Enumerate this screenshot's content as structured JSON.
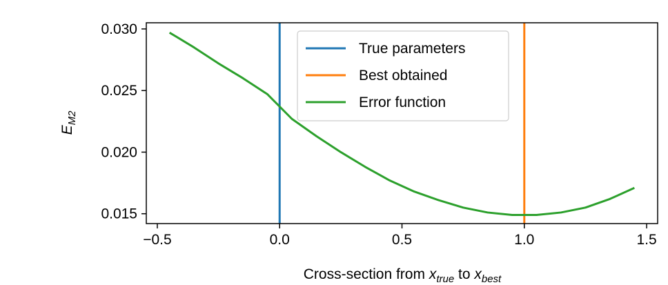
{
  "chart_data": {
    "type": "line",
    "xlabel": {
      "prefix": "Cross-section from ",
      "var1": "x",
      "sub1": "true",
      "mid": " to ",
      "var2": "x",
      "sub2": "best"
    },
    "ylabel": {
      "var": "E",
      "sub": "M2"
    },
    "xlim": [
      -0.545,
      1.545
    ],
    "ylim": [
      0.0142,
      0.0305
    ],
    "x_ticks": [
      -0.5,
      0.0,
      0.5,
      1.0,
      1.5
    ],
    "x_tick_labels": [
      "−0.5",
      "0.0",
      "0.5",
      "1.0",
      "1.5"
    ],
    "y_ticks": [
      0.015,
      0.02,
      0.025,
      0.03
    ],
    "y_tick_labels": [
      "0.015",
      "0.020",
      "0.025",
      "0.030"
    ],
    "grid": false,
    "legend_position": "upper-center",
    "series": [
      {
        "name": "True parameters",
        "kind": "vline",
        "x": 0.0,
        "color": "#1f77b4"
      },
      {
        "name": "Best obtained",
        "kind": "vline",
        "x": 1.0,
        "color": "#ff7f0e"
      },
      {
        "name": "Error function",
        "kind": "line",
        "color": "#2ca02c",
        "x": [
          -0.45,
          -0.35,
          -0.25,
          -0.15,
          -0.05,
          0.05,
          0.15,
          0.25,
          0.35,
          0.45,
          0.55,
          0.65,
          0.75,
          0.85,
          0.95,
          1.05,
          1.15,
          1.25,
          1.35,
          1.45
        ],
        "y": [
          0.0297,
          0.0285,
          0.0272,
          0.026,
          0.0247,
          0.0227,
          0.0213,
          0.02,
          0.0188,
          0.0177,
          0.0168,
          0.0161,
          0.0155,
          0.0151,
          0.0149,
          0.0149,
          0.0151,
          0.0155,
          0.0162,
          0.0171
        ]
      }
    ]
  }
}
